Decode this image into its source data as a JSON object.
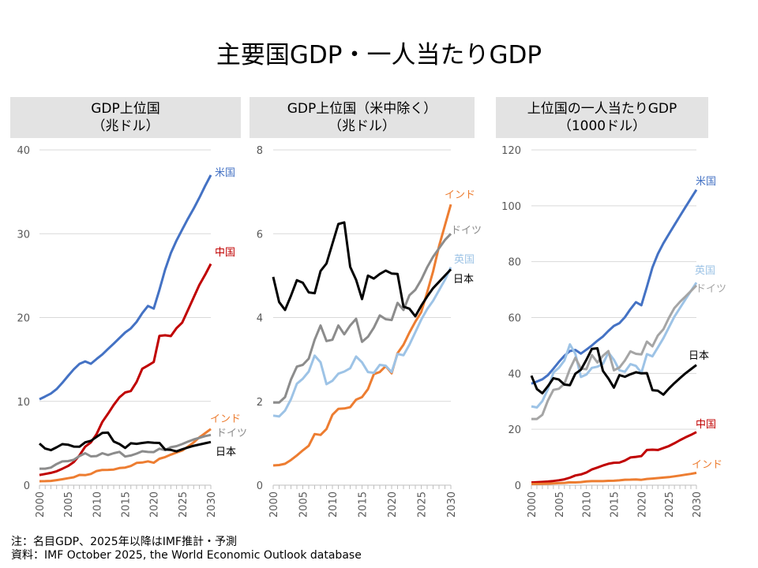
{
  "title": "主要国GDP・一人当たりGDP",
  "notes": [
    "注：名目GDP、2025年以降はIMF推計・予測",
    "資料：IMF October 2025, the World Economic Outlook database"
  ],
  "colors": {
    "米国": "#4472C4",
    "中国": "#C00000",
    "インド": "#ED7D31",
    "ドイツ": "#8C8C8C",
    "日本": "#000000",
    "英国": "#9DC3E6"
  },
  "chart_data": [
    {
      "type": "line",
      "title_lines": [
        "GDP上位国",
        "（兆ドル）"
      ],
      "x": [
        2000,
        2001,
        2002,
        2003,
        2004,
        2005,
        2006,
        2007,
        2008,
        2009,
        2010,
        2011,
        2012,
        2013,
        2014,
        2015,
        2016,
        2017,
        2018,
        2019,
        2020,
        2021,
        2022,
        2023,
        2024,
        2025,
        2026,
        2027,
        2028,
        2029,
        2030
      ],
      "xticks": [
        "2000",
        "2005",
        "2010",
        "2015",
        "2020",
        "2025",
        "2030"
      ],
      "ylim": [
        0,
        40
      ],
      "yticks": [
        "0",
        "10",
        "20",
        "30",
        "40"
      ],
      "grid": true,
      "series": [
        {
          "name": "米国",
          "values": [
            10.25,
            10.58,
            10.94,
            11.46,
            12.21,
            13.04,
            13.82,
            14.47,
            14.77,
            14.48,
            15.05,
            15.6,
            16.25,
            16.88,
            17.55,
            18.21,
            18.7,
            19.48,
            20.53,
            21.38,
            21.06,
            23.3,
            25.7,
            27.7,
            29.2,
            30.5,
            31.8,
            33.0,
            34.3,
            35.7,
            37.0
          ]
        },
        {
          "name": "中国",
          "values": [
            1.21,
            1.34,
            1.47,
            1.66,
            1.96,
            2.29,
            2.75,
            3.55,
            4.59,
            5.1,
            6.09,
            7.55,
            8.53,
            9.57,
            10.48,
            11.06,
            11.23,
            12.31,
            13.89,
            14.28,
            14.69,
            17.82,
            17.88,
            17.79,
            18.74,
            19.4,
            20.9,
            22.4,
            23.9,
            25.1,
            26.4
          ]
        },
        {
          "name": "インド",
          "values": [
            0.47,
            0.48,
            0.51,
            0.6,
            0.71,
            0.83,
            0.94,
            1.22,
            1.2,
            1.34,
            1.68,
            1.82,
            1.83,
            1.86,
            2.04,
            2.1,
            2.29,
            2.65,
            2.7,
            2.84,
            2.67,
            3.15,
            3.35,
            3.64,
            3.9,
            4.13,
            4.6,
            5.1,
            5.7,
            6.2,
            6.7
          ]
        },
        {
          "name": "ドイツ",
          "values": [
            1.97,
            1.97,
            2.1,
            2.52,
            2.83,
            2.87,
            3.02,
            3.47,
            3.81,
            3.44,
            3.47,
            3.81,
            3.6,
            3.81,
            3.97,
            3.42,
            3.54,
            3.76,
            4.05,
            3.96,
            3.94,
            4.35,
            4.18,
            4.53,
            4.66,
            4.9,
            5.2,
            5.45,
            5.65,
            5.85,
            6.0
          ]
        },
        {
          "name": "日本",
          "values": [
            4.97,
            4.37,
            4.18,
            4.52,
            4.89,
            4.83,
            4.6,
            4.58,
            5.11,
            5.29,
            5.76,
            6.23,
            6.27,
            5.21,
            4.9,
            4.44,
            5.0,
            4.93,
            5.04,
            5.12,
            5.05,
            5.04,
            4.26,
            4.21,
            4.03,
            4.28,
            4.5,
            4.7,
            4.85,
            5.0,
            5.15
          ]
        }
      ]
    },
    {
      "type": "line",
      "title_lines": [
        "GDP上位国（米中除く）",
        "（兆ドル）"
      ],
      "x": [
        2000,
        2001,
        2002,
        2003,
        2004,
        2005,
        2006,
        2007,
        2008,
        2009,
        2010,
        2011,
        2012,
        2013,
        2014,
        2015,
        2016,
        2017,
        2018,
        2019,
        2020,
        2021,
        2022,
        2023,
        2024,
        2025,
        2026,
        2027,
        2028,
        2029,
        2030
      ],
      "xticks": [
        "2000",
        "2005",
        "2010",
        "2015",
        "2020",
        "2025",
        "2030"
      ],
      "ylim": [
        0,
        8
      ],
      "yticks": [
        "0",
        "2",
        "4",
        "6",
        "8"
      ],
      "grid": true,
      "series": [
        {
          "name": "インド",
          "values": [
            0.47,
            0.48,
            0.51,
            0.6,
            0.71,
            0.83,
            0.94,
            1.22,
            1.2,
            1.34,
            1.68,
            1.82,
            1.83,
            1.86,
            2.04,
            2.1,
            2.29,
            2.65,
            2.7,
            2.84,
            2.67,
            3.15,
            3.35,
            3.64,
            3.9,
            4.13,
            4.6,
            5.1,
            5.7,
            6.2,
            6.7
          ]
        },
        {
          "name": "ドイツ",
          "values": [
            1.97,
            1.97,
            2.1,
            2.52,
            2.83,
            2.87,
            3.02,
            3.47,
            3.81,
            3.44,
            3.47,
            3.81,
            3.6,
            3.81,
            3.97,
            3.42,
            3.54,
            3.76,
            4.05,
            3.96,
            3.94,
            4.35,
            4.18,
            4.53,
            4.66,
            4.9,
            5.2,
            5.45,
            5.65,
            5.85,
            6.0
          ]
        },
        {
          "name": "英国",
          "values": [
            1.66,
            1.64,
            1.78,
            2.05,
            2.42,
            2.54,
            2.71,
            3.09,
            2.93,
            2.41,
            2.49,
            2.66,
            2.71,
            2.79,
            3.07,
            2.93,
            2.7,
            2.68,
            2.87,
            2.85,
            2.7,
            3.13,
            3.1,
            3.35,
            3.65,
            3.95,
            4.2,
            4.4,
            4.65,
            4.9,
            5.2
          ]
        },
        {
          "name": "日本",
          "values": [
            4.97,
            4.37,
            4.18,
            4.52,
            4.89,
            4.83,
            4.6,
            4.58,
            5.11,
            5.29,
            5.76,
            6.23,
            6.27,
            5.21,
            4.9,
            4.44,
            5.0,
            4.93,
            5.04,
            5.12,
            5.05,
            5.04,
            4.26,
            4.21,
            4.03,
            4.28,
            4.5,
            4.7,
            4.85,
            5.0,
            5.15
          ]
        }
      ]
    },
    {
      "type": "line",
      "title_lines": [
        "上位国の一人当たりGDP",
        "（1000ドル）"
      ],
      "x": [
        2000,
        2001,
        2002,
        2003,
        2004,
        2005,
        2006,
        2007,
        2008,
        2009,
        2010,
        2011,
        2012,
        2013,
        2014,
        2015,
        2016,
        2017,
        2018,
        2019,
        2020,
        2021,
        2022,
        2023,
        2024,
        2025,
        2026,
        2027,
        2028,
        2029,
        2030
      ],
      "xticks": [
        "2000",
        "2005",
        "2010",
        "2015",
        "2020",
        "2025",
        "2030"
      ],
      "ylim": [
        0,
        120
      ],
      "yticks": [
        "0",
        "20",
        "40",
        "60",
        "80",
        "100",
        "120"
      ],
      "grid": true,
      "series": [
        {
          "name": "米国",
          "values": [
            36.3,
            37.1,
            37.9,
            39.4,
            41.7,
            44.1,
            46.3,
            48.0,
            48.4,
            47.1,
            48.5,
            50.0,
            51.7,
            53.2,
            55.2,
            57.0,
            58.0,
            60.1,
            63.0,
            65.5,
            64.4,
            71.0,
            77.9,
            82.8,
            86.6,
            89.9,
            93.1,
            96.3,
            99.5,
            102.6,
            105.7
          ]
        },
        {
          "name": "英国",
          "values": [
            28.2,
            27.8,
            30.1,
            34.4,
            40.3,
            42.0,
            44.6,
            50.4,
            47.0,
            38.7,
            39.6,
            42.0,
            42.4,
            43.4,
            47.5,
            44.9,
            41.1,
            40.6,
            43.3,
            42.7,
            40.2,
            46.9,
            46.1,
            49.3,
            52.6,
            56.5,
            60.3,
            63.4,
            66.5,
            69.5,
            72.5
          ]
        },
        {
          "name": "ドイツ",
          "values": [
            23.7,
            23.7,
            25.2,
            30.3,
            34.1,
            34.5,
            36.3,
            41.6,
            45.6,
            41.7,
            41.5,
            46.6,
            43.9,
            46.3,
            48.0,
            41.1,
            42.1,
            44.6,
            47.9,
            47.0,
            46.8,
            51.4,
            49.7,
            53.6,
            55.8,
            59.9,
            63.4,
            65.6,
            67.5,
            69.5,
            71.5
          ]
        },
        {
          "name": "日本",
          "values": [
            39.2,
            34.4,
            32.9,
            35.4,
            38.3,
            37.8,
            36.0,
            35.8,
            39.9,
            41.3,
            44.9,
            48.8,
            49.0,
            40.9,
            38.2,
            34.9,
            39.4,
            38.8,
            39.7,
            40.4,
            40.0,
            40.1,
            34.0,
            33.8,
            32.4,
            34.6,
            36.5,
            38.3,
            40.0,
            41.5,
            43.0
          ]
        },
        {
          "name": "中国",
          "values": [
            0.96,
            1.05,
            1.15,
            1.29,
            1.51,
            1.75,
            2.1,
            2.69,
            3.47,
            3.83,
            4.55,
            5.61,
            6.3,
            7.02,
            7.64,
            8.02,
            8.08,
            8.82,
            9.91,
            10.14,
            10.41,
            12.6,
            12.7,
            12.6,
            13.3,
            14.0,
            15.0,
            16.1,
            17.1,
            18.0,
            19.0
          ]
        },
        {
          "name": "インド",
          "values": [
            0.44,
            0.45,
            0.47,
            0.55,
            0.63,
            0.73,
            0.81,
            1.02,
            0.99,
            1.09,
            1.35,
            1.45,
            1.43,
            1.44,
            1.56,
            1.59,
            1.71,
            1.96,
            1.97,
            2.05,
            1.91,
            2.24,
            2.37,
            2.53,
            2.7,
            2.88,
            3.15,
            3.45,
            3.75,
            4.05,
            4.4
          ]
        }
      ]
    }
  ]
}
